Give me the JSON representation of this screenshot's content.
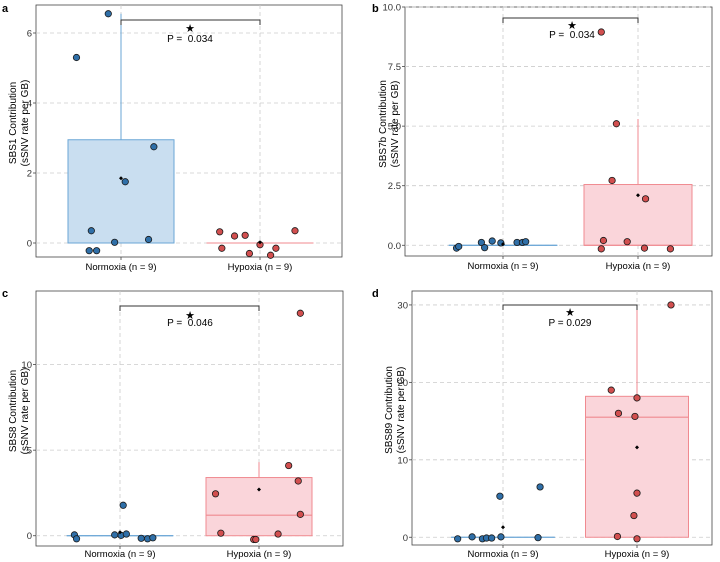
{
  "colors": {
    "normoxia_fill": "#c9def0",
    "normoxia_line": "#6aa6d6",
    "normoxia_point": "#2f6fa8",
    "hypoxia_fill": "#fad5da",
    "hypoxia_line": "#f08a90",
    "hypoxia_point": "#d24f4f",
    "grid": "#cccccc",
    "panel_border": "#444444",
    "bracket": "#333333"
  },
  "chart_data": [
    {
      "type": "box",
      "panel_label": "a",
      "ylabel_line1": "SBS1 Contribution",
      "ylabel_line2": "(sSNV rate per GB)",
      "categories": [
        "Normoxia (n = 9)",
        "Hypoxia (n = 9)"
      ],
      "ylim": [
        -0.4,
        6.8
      ],
      "yticks": [
        0,
        2,
        4,
        6
      ],
      "ytick_labels": [
        "0",
        "2",
        "4",
        "6"
      ],
      "significance": {
        "star": "★",
        "p_text": "P =  0.034"
      },
      "groups": [
        {
          "name": "Normoxia",
          "q1": 0,
          "median": 0,
          "q3": 2.95,
          "whisker_low": 0,
          "whisker_high": 6.55,
          "mean": 1.85,
          "points": [
            [
              -0.42,
              5.3
            ],
            [
              -0.3,
              -0.22
            ],
            [
              -0.28,
              0.35
            ],
            [
              -0.23,
              -0.22
            ],
            [
              -0.06,
              0.02
            ],
            [
              0.04,
              1.75
            ],
            [
              0.26,
              0.1
            ],
            [
              0.31,
              2.75
            ],
            [
              -0.12,
              6.55
            ]
          ]
        },
        {
          "name": "Hypoxia",
          "q1": 0,
          "median": 0,
          "q3": 0,
          "whisker_low": 0,
          "whisker_high": 0,
          "mean": 0.02,
          "points": [
            [
              -0.38,
              0.32
            ],
            [
              -0.36,
              -0.15
            ],
            [
              -0.24,
              0.2
            ],
            [
              -0.14,
              0.22
            ],
            [
              -0.1,
              -0.3
            ],
            [
              0.0,
              -0.05
            ],
            [
              0.1,
              -0.35
            ],
            [
              0.15,
              -0.15
            ],
            [
              0.33,
              0.35
            ]
          ]
        }
      ]
    },
    {
      "type": "box",
      "panel_label": "b",
      "ylabel_line1": "SBS7b Contribution",
      "ylabel_line2": "(sSNV rate per GB)",
      "categories": [
        "Normoxia (n = 9)",
        "Hypoxia (n = 9)"
      ],
      "ylim": [
        -0.45,
        10
      ],
      "yticks": [
        0,
        2.5,
        5,
        7.5,
        10
      ],
      "ytick_labels": [
        "0.0",
        "2.5",
        "5.0",
        "7.5",
        "10.0"
      ],
      "significance": {
        "star": "★",
        "p_text": "P =  0.034"
      },
      "groups": [
        {
          "name": "Normoxia",
          "q1": 0,
          "median": 0,
          "q3": 0,
          "whisker_low": 0,
          "whisker_high": 0,
          "mean": 0.05,
          "points": [
            [
              -0.43,
              -0.12
            ],
            [
              -0.41,
              -0.05
            ],
            [
              -0.2,
              0.12
            ],
            [
              -0.17,
              -0.1
            ],
            [
              -0.1,
              0.18
            ],
            [
              -0.02,
              0.1
            ],
            [
              0.13,
              0.12
            ],
            [
              0.18,
              0.12
            ],
            [
              0.21,
              0.15
            ]
          ]
        },
        {
          "name": "Hypoxia",
          "q1": 0,
          "median": 0,
          "q3": 2.55,
          "whisker_low": 0,
          "whisker_high": 5.3,
          "mean": 2.1,
          "points": [
            [
              -0.34,
              8.95
            ],
            [
              -0.32,
              0.2
            ],
            [
              -0.34,
              -0.15
            ],
            [
              -0.24,
              2.72
            ],
            [
              -0.2,
              5.1
            ],
            [
              -0.1,
              0.15
            ],
            [
              0.06,
              -0.12
            ],
            [
              0.07,
              1.95
            ],
            [
              0.3,
              -0.15
            ]
          ]
        }
      ]
    },
    {
      "type": "box",
      "panel_label": "c",
      "ylabel_line1": "SBS8 Contribution",
      "ylabel_line2": "(sSNV rate per GB)",
      "categories": [
        "Normoxia (n = 9)",
        "Hypoxia (n = 9)"
      ],
      "ylim": [
        -0.6,
        14.3
      ],
      "yticks": [
        0,
        5,
        10
      ],
      "ytick_labels": [
        "0",
        "5",
        "10"
      ],
      "significance": {
        "star": "★",
        "p_text": "P =  0.046"
      },
      "groups": [
        {
          "name": "Normoxia",
          "q1": 0,
          "median": 0,
          "q3": 0,
          "whisker_low": 0,
          "whisker_high": 0,
          "mean": 0.2,
          "points": [
            [
              -0.43,
              0.05
            ],
            [
              -0.41,
              -0.18
            ],
            [
              0.01,
              0.02
            ],
            [
              0.06,
              0.1
            ],
            [
              0.2,
              -0.15
            ],
            [
              0.03,
              1.78
            ],
            [
              0.26,
              -0.18
            ],
            [
              0.31,
              -0.12
            ],
            [
              -0.05,
              0.05
            ]
          ]
        },
        {
          "name": "Hypoxia",
          "q1": 0,
          "median": 1.2,
          "q3": 3.4,
          "whisker_low": 0,
          "whisker_high": 4.3,
          "mean": 2.7,
          "points": [
            [
              -0.41,
              2.45
            ],
            [
              -0.36,
              0.15
            ],
            [
              -0.05,
              -0.22
            ],
            [
              -0.03,
              -0.22
            ],
            [
              0.18,
              0.1
            ],
            [
              0.28,
              4.1
            ],
            [
              0.39,
              13.0
            ],
            [
              0.37,
              3.2
            ],
            [
              0.39,
              1.25
            ]
          ]
        }
      ]
    },
    {
      "type": "box",
      "panel_label": "d",
      "ylabel_line1": "SBS89 Contribution",
      "ylabel_line2": "(sSNV rate per GB)",
      "categories": [
        "Normoxia (n = 9)",
        "Hypoxia (n = 9)"
      ],
      "ylim": [
        -1,
        31.8
      ],
      "yticks": [
        0,
        10,
        20,
        30
      ],
      "ytick_labels": [
        "0",
        "10",
        "20",
        "30"
      ],
      "significance": {
        "star": "★",
        "p_text": "P = 0.029"
      },
      "groups": [
        {
          "name": "Normoxia",
          "q1": 0,
          "median": 0,
          "q3": 0,
          "whisker_low": 0,
          "whisker_high": 0,
          "mean": 1.3,
          "points": [
            [
              -0.44,
              -0.2
            ],
            [
              -0.3,
              0.05
            ],
            [
              -0.2,
              -0.2
            ],
            [
              -0.16,
              -0.1
            ],
            [
              -0.11,
              -0.1
            ],
            [
              -0.03,
              5.3
            ],
            [
              -0.02,
              0.05
            ],
            [
              0.36,
              6.5
            ],
            [
              0.34,
              -0.05
            ]
          ]
        },
        {
          "name": "Hypoxia",
          "q1": 0,
          "median": 15.5,
          "q3": 18.2,
          "whisker_low": 0,
          "whisker_high": 30.0,
          "mean": 11.6,
          "points": [
            [
              -0.25,
              19.0
            ],
            [
              -0.18,
              16.0
            ],
            [
              -0.19,
              0.1
            ],
            [
              -0.02,
              15.6
            ],
            [
              0.0,
              18.0
            ],
            [
              0.0,
              5.7
            ],
            [
              -0.03,
              2.8
            ],
            [
              0.0,
              -0.2
            ],
            [
              0.33,
              30.0
            ]
          ]
        }
      ]
    }
  ]
}
